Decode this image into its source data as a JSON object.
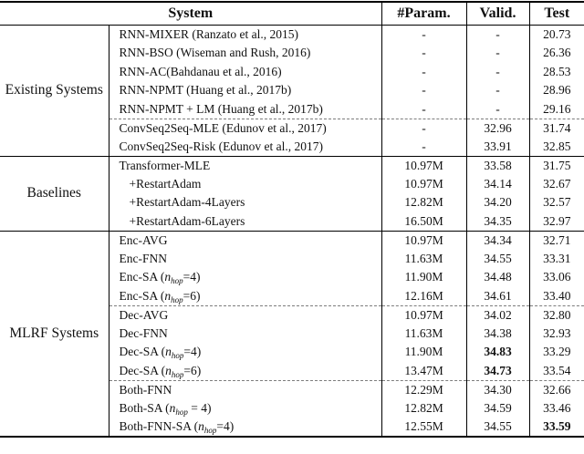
{
  "table": {
    "headers": {
      "system": "System",
      "param": "#Param.",
      "valid": "Valid.",
      "test": "Test"
    },
    "groups": [
      {
        "label": "Existing Systems",
        "rows": [
          {
            "system": "RNN-MIXER (Ranzato et al., 2015)",
            "param": "-",
            "valid": "-",
            "test": "20.73"
          },
          {
            "system": "RNN-BSO (Wiseman and Rush, 2016)",
            "param": "-",
            "valid": "-",
            "test": "26.36"
          },
          {
            "system": "RNN-AC(Bahdanau et al., 2016)",
            "param": "-",
            "valid": "-",
            "test": "28.53"
          },
          {
            "system": "RNN-NPMT (Huang et al., 2017b)",
            "param": "-",
            "valid": "-",
            "test": "28.96"
          },
          {
            "system": "RNN-NPMT + LM (Huang et al., 2017b)",
            "param": "-",
            "valid": "-",
            "test": "29.16"
          },
          {
            "system": "ConvSeq2Seq-MLE (Edunov et al., 2017)",
            "param": "-",
            "valid": "32.96",
            "test": "31.74",
            "dashed_top": true
          },
          {
            "system": "ConvSeq2Seq-Risk (Edunov et al., 2017)",
            "param": "-",
            "valid": "33.91",
            "test": "32.85"
          }
        ]
      },
      {
        "label": "Baselines",
        "rows": [
          {
            "system": "Transformer-MLE",
            "param": "10.97M",
            "valid": "33.58",
            "test": "31.75"
          },
          {
            "system": "+RestartAdam",
            "param": "10.97M",
            "valid": "34.14",
            "test": "32.67",
            "indent": true
          },
          {
            "system": "+RestartAdam-4Layers",
            "param": "12.82M",
            "valid": "34.20",
            "test": "32.57",
            "indent": true
          },
          {
            "system": "+RestartAdam-6Layers",
            "param": "16.50M",
            "valid": "34.35",
            "test": "32.97",
            "indent": true
          }
        ]
      },
      {
        "label": "MLRF Systems",
        "rows": [
          {
            "system": "Enc-AVG",
            "param": "10.97M",
            "valid": "34.34",
            "test": "32.71"
          },
          {
            "system": "Enc-FNN",
            "param": "11.63M",
            "valid": "34.55",
            "test": "33.31"
          },
          {
            "system": "Enc-SA (n_{hop}=4)",
            "param": "11.90M",
            "valid": "34.48",
            "test": "33.06"
          },
          {
            "system": "Enc-SA (n_{hop}=6)",
            "param": "12.16M",
            "valid": "34.61",
            "test": "33.40"
          },
          {
            "system": "Dec-AVG",
            "param": "10.97M",
            "valid": "34.02",
            "test": "32.80",
            "dashed_top": true
          },
          {
            "system": "Dec-FNN",
            "param": "11.63M",
            "valid": "34.38",
            "test": "32.93"
          },
          {
            "system": "Dec-SA (n_{hop}=4)",
            "param": "11.90M",
            "valid": "34.83",
            "test": "33.29",
            "bold_valid": true
          },
          {
            "system": "Dec-SA (n_{hop}=6)",
            "param": "13.47M",
            "valid": "34.73",
            "test": "33.54",
            "bold_valid": true
          },
          {
            "system": "Both-FNN",
            "param": "12.29M",
            "valid": "34.30",
            "test": "32.66",
            "dashed_top": true
          },
          {
            "system": "Both-SA (n_{hop} = 4)",
            "param": "12.82M",
            "valid": "34.59",
            "test": "33.46"
          },
          {
            "system": "Both-FNN-SA (n_{hop}=4)",
            "param": "12.55M",
            "valid": "34.55",
            "test": "33.59",
            "bold_test": true
          }
        ]
      }
    ]
  }
}
